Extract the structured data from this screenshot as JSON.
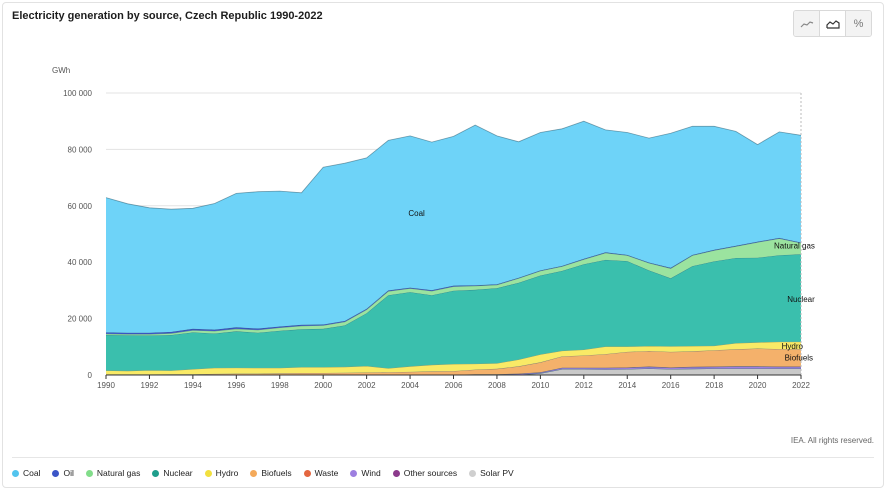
{
  "title": "Electricity generation by source, Czech Republic 1990-2022",
  "toolbar": {
    "buttons": [
      {
        "icon": "line-chart-icon",
        "active": false
      },
      {
        "icon": "area-chart-icon",
        "active": true
      },
      {
        "icon": "percent-icon",
        "label": "%",
        "active": false
      }
    ]
  },
  "credit": "IEA. All rights reserved.",
  "chart_data": {
    "type": "area",
    "stacked": true,
    "ylabel": "GWh",
    "ylim": [
      0,
      100000
    ],
    "yticks": [
      0,
      20000,
      40000,
      60000,
      80000,
      100000
    ],
    "ytick_labels": [
      "0",
      "20 000",
      "40 000",
      "60 000",
      "80 000",
      "100 000"
    ],
    "xticks": [
      1990,
      1992,
      1994,
      1996,
      1998,
      2000,
      2002,
      2004,
      2006,
      2008,
      2010,
      2012,
      2014,
      2016,
      2018,
      2020,
      2022
    ],
    "grid": true,
    "legend_position": "bottom",
    "x": [
      1990,
      1991,
      1992,
      1993,
      1994,
      1995,
      1996,
      1997,
      1998,
      1999,
      2000,
      2001,
      2002,
      2003,
      2004,
      2005,
      2006,
      2007,
      2008,
      2009,
      2010,
      2011,
      2012,
      2013,
      2014,
      2015,
      2016,
      2017,
      2018,
      2019,
      2020,
      2021,
      2022
    ],
    "series": [
      {
        "name": "Solar PV",
        "color": "#c9c9c9",
        "values": [
          0,
          0,
          0,
          0,
          0,
          0,
          0,
          0,
          0,
          0,
          0,
          0,
          0,
          0,
          0,
          0,
          0,
          0,
          0,
          100,
          600,
          2100,
          2100,
          2000,
          2100,
          2300,
          2100,
          2200,
          2300,
          2300,
          2300,
          2300,
          2300
        ]
      },
      {
        "name": "Other sources",
        "color": "#8c3a8c",
        "values": [
          0,
          0,
          0,
          0,
          0,
          0,
          0,
          0,
          0,
          0,
          0,
          0,
          0,
          0,
          0,
          0,
          0,
          0,
          0,
          0,
          0,
          0,
          0,
          0,
          0,
          0,
          0,
          0,
          0,
          0,
          0,
          0,
          0
        ]
      },
      {
        "name": "Wind",
        "color": "#9d7fe0",
        "values": [
          0,
          0,
          0,
          0,
          0,
          0,
          0,
          0,
          0,
          0,
          0,
          0,
          0,
          0,
          0,
          0,
          0,
          200,
          200,
          300,
          300,
          400,
          400,
          500,
          500,
          600,
          500,
          600,
          600,
          700,
          700,
          600,
          600
        ]
      },
      {
        "name": "Waste",
        "color": "#e4663f",
        "values": [
          0,
          0,
          0,
          0,
          0,
          0,
          0,
          0,
          0,
          0,
          0,
          0,
          0,
          0,
          100,
          100,
          100,
          100,
          100,
          100,
          100,
          100,
          100,
          100,
          100,
          100,
          100,
          100,
          100,
          100,
          100,
          100,
          100
        ]
      },
      {
        "name": "Biofuels",
        "color": "#f4b16b",
        "values": [
          200,
          200,
          200,
          300,
          300,
          400,
          500,
          500,
          600,
          700,
          700,
          800,
          900,
          1000,
          1000,
          1200,
          1300,
          1600,
          1900,
          2600,
          3500,
          4000,
          4300,
          4800,
          5500,
          5500,
          5500,
          5500,
          5800,
          6000,
          6300,
          6200,
          6200
        ]
      },
      {
        "name": "Hydro",
        "color": "#f9ea66",
        "values": [
          1400,
          1300,
          1500,
          1300,
          1800,
          2100,
          2100,
          2000,
          1900,
          2100,
          2100,
          2100,
          2300,
          1400,
          2000,
          2300,
          2500,
          2100,
          2000,
          2400,
          2800,
          2000,
          2100,
          2700,
          1900,
          1800,
          2000,
          1900,
          1600,
          2200,
          2200,
          2600,
          2600
        ]
      },
      {
        "name": "Nuclear",
        "color": "#3abfad",
        "values": [
          12600,
          12600,
          12300,
          12600,
          13000,
          12200,
          12900,
          12500,
          13200,
          13400,
          13600,
          14700,
          18700,
          25900,
          26300,
          24700,
          26000,
          26200,
          26600,
          27200,
          28000,
          28300,
          30300,
          30700,
          30300,
          26800,
          24100,
          28300,
          29900,
          30200,
          30000,
          30700,
          31000
        ]
      },
      {
        "name": "Natural gas",
        "color": "#9be39f",
        "values": [
          400,
          400,
          500,
          600,
          800,
          900,
          900,
          1000,
          1100,
          1200,
          1200,
          1300,
          1300,
          1400,
          1300,
          1500,
          1500,
          1400,
          1200,
          1600,
          1600,
          1600,
          1700,
          2500,
          2000,
          2600,
          3500,
          3800,
          3900,
          4100,
          5500,
          5900,
          4000
        ]
      },
      {
        "name": "Oil",
        "color": "#3b55c7",
        "values": [
          500,
          500,
          500,
          500,
          500,
          500,
          500,
          500,
          400,
          400,
          300,
          300,
          300,
          300,
          300,
          300,
          300,
          200,
          200,
          200,
          200,
          200,
          200,
          200,
          200,
          200,
          200,
          200,
          200,
          200,
          200,
          200,
          200
        ]
      },
      {
        "name": "Coal",
        "color": "#6ed3f8",
        "values": [
          47800,
          45700,
          44300,
          43500,
          42700,
          44700,
          47500,
          48500,
          48000,
          46800,
          55800,
          55900,
          53500,
          53200,
          53800,
          52500,
          52900,
          56800,
          52600,
          48200,
          48900,
          48600,
          48800,
          43400,
          43400,
          44100,
          47700,
          45600,
          43800,
          40600,
          34400,
          37600,
          38000
        ]
      }
    ],
    "area_labels": [
      {
        "text": "Coal",
        "year": 2004.3,
        "value": 57500
      },
      {
        "text": "Natural gas",
        "year": 2021.7,
        "value": 46000
      },
      {
        "text": "Nuclear",
        "year": 2022,
        "value": 27000
      },
      {
        "text": "Hydro",
        "year": 2021.6,
        "value": 10300
      },
      {
        "text": "Biofuels",
        "year": 2021.9,
        "value": 6200
      }
    ]
  },
  "legend": [
    {
      "name": "Coal",
      "color": "#52c4ee"
    },
    {
      "name": "Oil",
      "color": "#3b55c7"
    },
    {
      "name": "Natural gas",
      "color": "#82dd8a"
    },
    {
      "name": "Nuclear",
      "color": "#1e9e8c"
    },
    {
      "name": "Hydro",
      "color": "#f2e03e"
    },
    {
      "name": "Biofuels",
      "color": "#f4a95a"
    },
    {
      "name": "Waste",
      "color": "#e4663f"
    },
    {
      "name": "Wind",
      "color": "#9d7fe0"
    },
    {
      "name": "Other sources",
      "color": "#8c3a8c"
    },
    {
      "name": "Solar PV",
      "color": "#cfcfcf"
    }
  ]
}
